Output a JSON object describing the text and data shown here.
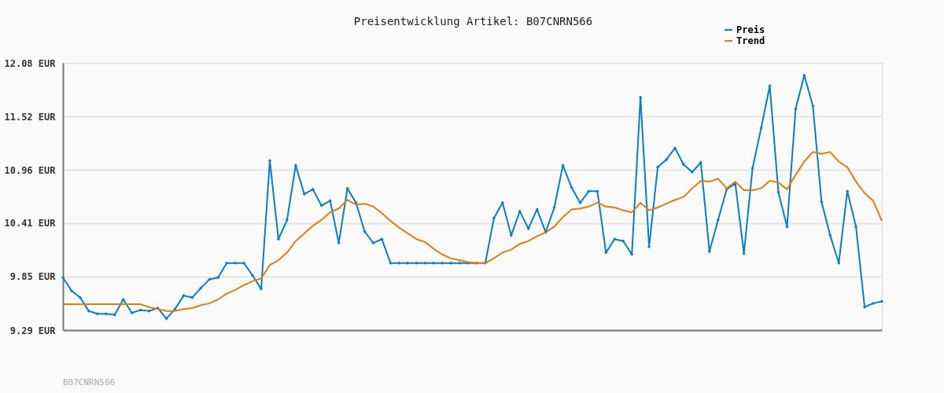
{
  "chart_data": {
    "type": "line",
    "title": "Preisentwicklung Artikel: B07CNRN566",
    "categories": [
      null,
      null,
      null,
      null,
      null,
      null,
      null,
      null,
      null,
      null,
      null,
      null,
      null,
      null,
      null,
      null,
      null,
      null,
      null,
      null,
      null,
      null,
      null,
      null,
      null,
      null,
      null,
      null,
      null,
      null,
      null,
      null,
      null,
      null,
      null,
      null,
      null,
      null,
      null,
      null,
      null,
      null,
      null,
      null,
      null,
      null,
      null,
      null,
      null,
      null,
      null,
      null,
      null,
      null,
      null,
      null,
      null,
      null,
      null,
      null,
      null,
      null,
      null,
      null,
      null,
      null,
      null,
      null,
      null,
      null,
      null,
      null,
      null,
      null,
      null,
      null,
      null,
      null,
      null,
      null,
      null,
      null,
      null,
      null,
      null,
      null,
      null,
      null,
      null,
      null,
      null,
      null,
      null,
      null,
      null,
      null
    ],
    "series": [
      {
        "name": "Preis",
        "color": "#0a7dc8",
        "marker": "diamond",
        "values": [
          9.84,
          9.7,
          9.63,
          9.49,
          9.46,
          9.46,
          9.45,
          9.61,
          9.47,
          9.5,
          9.49,
          9.52,
          9.41,
          9.51,
          9.65,
          9.63,
          9.73,
          9.82,
          9.84,
          9.99,
          9.99,
          9.99,
          9.86,
          9.72,
          11.06,
          10.24,
          10.44,
          11.01,
          10.71,
          10.76,
          10.59,
          10.64,
          10.2,
          10.77,
          10.62,
          10.32,
          10.2,
          10.24,
          9.99,
          9.99,
          9.99,
          9.99,
          9.99,
          9.99,
          9.99,
          9.99,
          9.99,
          9.99,
          9.99,
          9.99,
          10.46,
          10.62,
          10.28,
          10.53,
          10.35,
          10.55,
          10.31,
          10.57,
          11.01,
          10.78,
          10.62,
          10.74,
          10.74,
          10.1,
          10.24,
          10.22,
          10.08,
          11.72,
          10.16,
          10.99,
          11.07,
          11.19,
          11.02,
          10.94,
          11.04,
          10.11,
          10.44,
          10.76,
          10.82,
          10.09,
          10.98,
          11.4,
          11.84,
          10.73,
          10.37,
          11.6,
          11.95,
          11.63,
          10.63,
          10.28,
          9.99,
          10.74,
          10.37,
          9.53,
          9.57,
          9.59
        ]
      },
      {
        "name": "Trend",
        "color": "#e07d10",
        "marker": "none",
        "values": [
          9.56,
          9.56,
          9.56,
          9.56,
          9.56,
          9.56,
          9.56,
          9.56,
          9.56,
          9.56,
          9.53,
          9.51,
          9.49,
          9.49,
          9.51,
          9.52,
          9.55,
          9.57,
          9.61,
          9.67,
          9.71,
          9.76,
          9.8,
          9.83,
          9.97,
          10.02,
          10.1,
          10.22,
          10.3,
          10.38,
          10.44,
          10.52,
          10.56,
          10.65,
          10.6,
          10.61,
          10.58,
          10.51,
          10.43,
          10.36,
          10.3,
          10.24,
          10.21,
          10.14,
          10.08,
          10.04,
          10.02,
          10.0,
          9.99,
          9.99,
          10.04,
          10.1,
          10.13,
          10.19,
          10.22,
          10.27,
          10.31,
          10.37,
          10.47,
          10.55,
          10.56,
          10.58,
          10.62,
          10.58,
          10.57,
          10.54,
          10.52,
          10.62,
          10.54,
          10.57,
          10.61,
          10.65,
          10.68,
          10.77,
          10.85,
          10.84,
          10.87,
          10.77,
          10.84,
          10.75,
          10.75,
          10.77,
          10.85,
          10.83,
          10.76,
          10.91,
          11.05,
          11.15,
          11.13,
          11.15,
          11.05,
          10.99,
          10.84,
          10.72,
          10.64,
          10.43
        ]
      }
    ],
    "ylim": [
      9.29,
      12.08
    ],
    "yticks": [
      {
        "value": 9.29,
        "label": "9.29 EUR"
      },
      {
        "value": 9.85,
        "label": "9.85 EUR"
      },
      {
        "value": 10.41,
        "label": "10.41 EUR"
      },
      {
        "value": 10.96,
        "label": "10.96 EUR"
      },
      {
        "value": 11.52,
        "label": "11.52 EUR"
      },
      {
        "value": 12.08,
        "label": "12.08 EUR"
      }
    ],
    "grid": "y",
    "legend": "top right",
    "tick_labels": "y",
    "line_style": "solid",
    "annotations": [
      "B07CNRN566"
    ]
  }
}
